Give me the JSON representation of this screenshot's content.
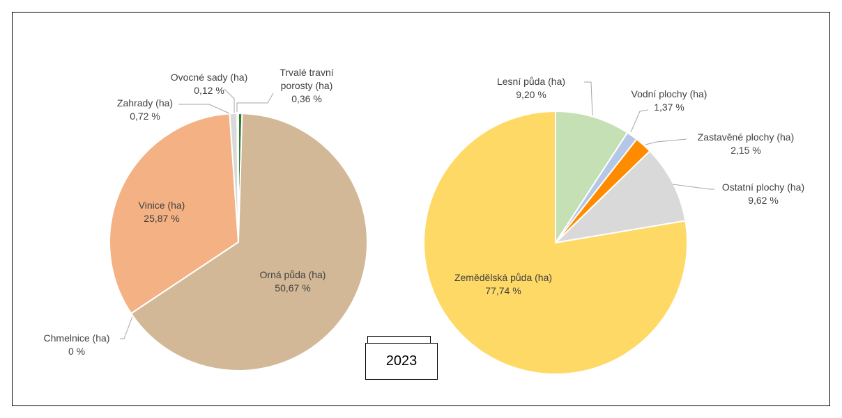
{
  "chart_data": [
    {
      "type": "pie",
      "categories": [
        "Trvalé travní porosty (ha)",
        "Orná půda (ha)",
        "Chmelnice (ha)",
        "Vinice (ha)",
        "Zahrady (ha)",
        "Ovocné sady (ha)"
      ],
      "values": [
        0.36,
        50.67,
        0,
        25.87,
        0.72,
        0.12
      ],
      "value_labels": [
        "0,36 %",
        "50,67 %",
        "0 %",
        "25,87 %",
        "0,72 %",
        "0,12 %"
      ],
      "colors": [
        "#2e7d32",
        "#d2b896",
        "#7f7f7f",
        "#f4b183",
        "#d9d9d9",
        "#ededed"
      ]
    },
    {
      "type": "pie",
      "categories": [
        "Lesní půda (ha)",
        "Vodní plochy (ha)",
        "Zastavěné plochy (ha)",
        "Ostatní plochy (ha)",
        "Zemědělská půda (ha)"
      ],
      "values": [
        9.2,
        1.37,
        2.15,
        9.62,
        77.74
      ],
      "value_labels": [
        "9,20 %",
        "1,37 %",
        "2,15 %",
        "9,62 %",
        "77,74 %"
      ],
      "colors": [
        "#c5e0b4",
        "#b4c7e7",
        "#ff8c00",
        "#d9d9d9",
        "#ffd966"
      ]
    }
  ],
  "year": "2023"
}
